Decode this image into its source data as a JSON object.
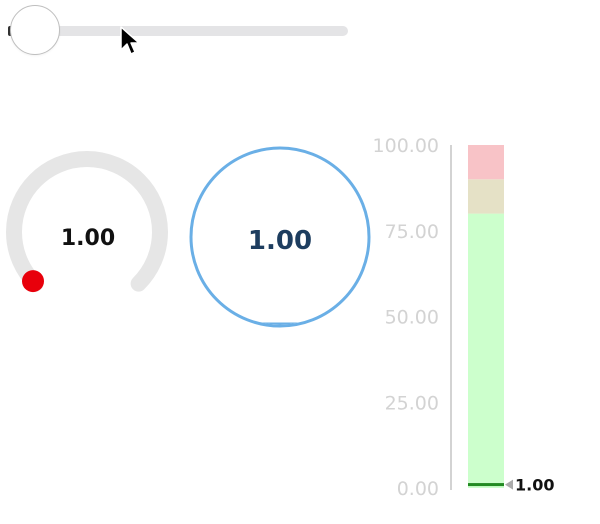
{
  "slider": {
    "value": 0,
    "track_color": "#e4e4e6"
  },
  "knob": {
    "value_label": "1.00",
    "value": 1.0,
    "min": 0,
    "max": 100,
    "track_color": "#e6e6e6",
    "handle_color": "#e8000b"
  },
  "round_gauge": {
    "value_label": "1.00",
    "value": 1.0,
    "min": 0,
    "max": 100,
    "ring_color": "#6aafe6",
    "text_color": "#1d3d5f"
  },
  "linear_gauge": {
    "value": 1.0,
    "value_label": "1.00",
    "min": 0,
    "max": 100,
    "ticks": [
      "0.00",
      "25.00",
      "50.00",
      "75.00",
      "100.00"
    ],
    "ranges": [
      {
        "from": 0,
        "to": 80,
        "color": "#ccffcc"
      },
      {
        "from": 80,
        "to": 90,
        "color": "#e5e1c6"
      },
      {
        "from": 90,
        "to": 100,
        "color": "#f8c3c7"
      }
    ],
    "value_color": "#228b22"
  }
}
